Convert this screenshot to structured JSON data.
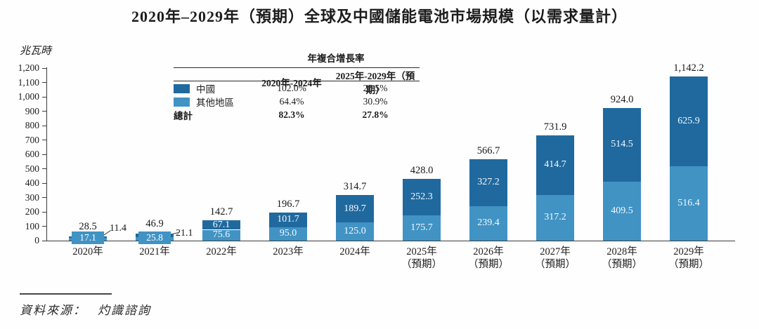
{
  "title": "2020年–2029年（預期）全球及中國儲能電池市場規模（以需求量計）",
  "source": {
    "label": "資料來源：",
    "value": "灼識諮詢"
  },
  "cagr_table": {
    "header": "年複合增長率",
    "columns": [
      "2020年-2024年",
      "2025年-2029年（預期）"
    ],
    "rows": [
      {
        "label": "中國",
        "values": [
          "102.0%",
          "25.5%"
        ],
        "bold": false
      },
      {
        "label": "其他地區",
        "values": [
          "64.4%",
          "30.9%"
        ],
        "bold": false
      },
      {
        "label": "總計",
        "values": [
          "82.3%",
          "27.8%"
        ],
        "bold": true
      }
    ]
  },
  "chart_data": {
    "type": "bar",
    "stacked": true,
    "title": "2020年–2029年（預期）全球及中國儲能電池市場規模（以需求量計）",
    "ylabel": "兆瓦時",
    "xlabel": "",
    "ylim": [
      0,
      1200
    ],
    "grid": false,
    "legend_position": "top-table",
    "y_ticks": [
      "0",
      "100",
      "200",
      "300",
      "400",
      "500",
      "600",
      "700",
      "800",
      "900",
      "1,000",
      "1,100",
      "1,200"
    ],
    "categories": [
      "2020年",
      "2021年",
      "2022年",
      "2023年",
      "2024年",
      "2025年",
      "2026年",
      "2027年",
      "2028年",
      "2029年"
    ],
    "forecast_note": "（預期）",
    "forecast_from_index": 5,
    "series": [
      {
        "name": "中國",
        "color": "#20699e",
        "values": [
          11.4,
          21.1,
          67.1,
          101.7,
          189.7,
          252.3,
          327.2,
          414.7,
          514.5,
          625.9
        ],
        "labels": [
          "11.4",
          "21.1",
          "67.1",
          "101.7",
          "189.7",
          "252.3",
          "327.2",
          "414.7",
          "514.5",
          "625.9"
        ]
      },
      {
        "name": "其他地區",
        "color": "#4193c4",
        "values": [
          17.1,
          25.8,
          75.6,
          95.0,
          125.0,
          175.7,
          239.4,
          317.2,
          409.5,
          516.4
        ],
        "labels": [
          "17.1",
          "25.8",
          "75.6",
          "95.0",
          "125.0",
          "175.7",
          "239.4",
          "317.2",
          "409.5",
          "516.4"
        ]
      }
    ],
    "totals": [
      28.5,
      46.9,
      142.7,
      196.7,
      314.7,
      428.0,
      566.7,
      731.9,
      924.0,
      1142.2
    ],
    "total_labels": [
      "28.5",
      "46.9",
      "142.7",
      "196.7",
      "314.7",
      "428.0",
      "566.7",
      "731.9",
      "924.0",
      "1,142.2"
    ]
  }
}
